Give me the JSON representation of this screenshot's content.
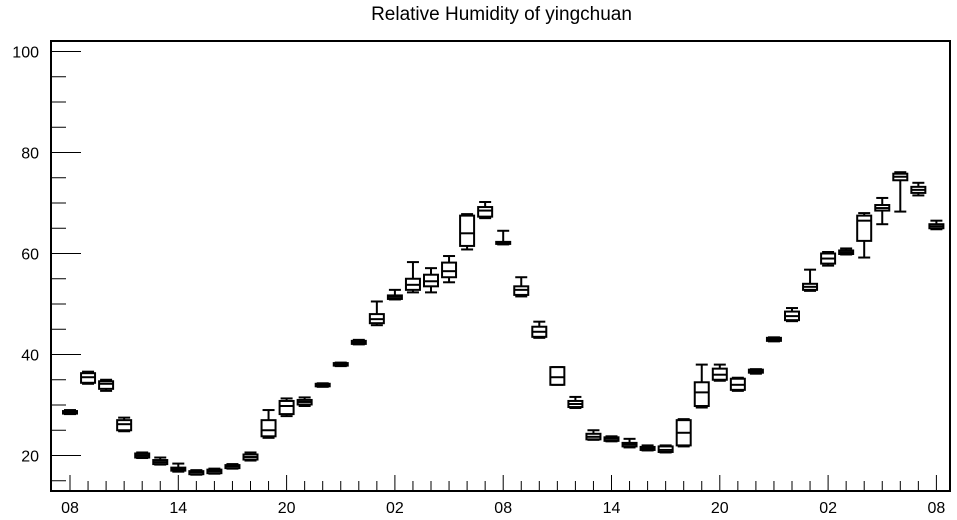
{
  "chart_data": {
    "type": "boxplot",
    "title": "Relative Humidity of yingchuan",
    "xlabel": "",
    "ylabel": "",
    "ylim": [
      13.5,
      102
    ],
    "yticks": [
      20,
      40,
      60,
      80,
      100
    ],
    "x_ticks": [
      {
        "label": "08",
        "index": 0
      },
      {
        "label": "14",
        "index": 6
      },
      {
        "label": "20",
        "index": 12
      },
      {
        "label": "02",
        "index": 18
      },
      {
        "label": "08",
        "index": 24
      },
      {
        "label": "14",
        "index": 30
      },
      {
        "label": "20",
        "index": 36
      },
      {
        "label": "02",
        "index": 42
      },
      {
        "label": "08",
        "index": 48
      }
    ],
    "boxes": [
      {
        "i": 0,
        "min": 28.2,
        "q1": 28.3,
        "median": 28.6,
        "q3": 28.8,
        "max": 29.0
      },
      {
        "i": 1,
        "min": 34.2,
        "q1": 34.4,
        "median": 35.5,
        "q3": 36.3,
        "max": 36.6
      },
      {
        "i": 2,
        "min": 32.8,
        "q1": 33.2,
        "median": 34.2,
        "q3": 34.7,
        "max": 35.0
      },
      {
        "i": 3,
        "min": 24.8,
        "q1": 25.0,
        "median": 26.2,
        "q3": 27.0,
        "max": 27.5
      },
      {
        "i": 4,
        "min": 19.5,
        "q1": 19.6,
        "median": 20.0,
        "q3": 20.4,
        "max": 20.6
      },
      {
        "i": 5,
        "min": 18.2,
        "q1": 18.3,
        "median": 18.7,
        "q3": 19.1,
        "max": 19.6
      },
      {
        "i": 6,
        "min": 16.8,
        "q1": 17.0,
        "median": 17.3,
        "q3": 17.6,
        "max": 18.4
      },
      {
        "i": 7,
        "min": 16.2,
        "q1": 16.3,
        "median": 16.7,
        "q3": 16.9,
        "max": 17.1
      },
      {
        "i": 8,
        "min": 16.4,
        "q1": 16.5,
        "median": 16.9,
        "q3": 17.2,
        "max": 17.4
      },
      {
        "i": 9,
        "min": 17.4,
        "q1": 17.5,
        "median": 17.9,
        "q3": 18.1,
        "max": 18.3
      },
      {
        "i": 10,
        "min": 19.0,
        "q1": 19.2,
        "median": 19.7,
        "q3": 20.2,
        "max": 20.6
      },
      {
        "i": 11,
        "min": 23.5,
        "q1": 23.8,
        "median": 25.0,
        "q3": 27.0,
        "max": 29.0
      },
      {
        "i": 12,
        "min": 27.8,
        "q1": 28.2,
        "median": 29.8,
        "q3": 30.8,
        "max": 31.3
      },
      {
        "i": 13,
        "min": 29.8,
        "q1": 30.1,
        "median": 30.6,
        "q3": 31.0,
        "max": 31.5
      },
      {
        "i": 14,
        "min": 33.6,
        "q1": 33.7,
        "median": 34.0,
        "q3": 34.2,
        "max": 34.3
      },
      {
        "i": 15,
        "min": 37.7,
        "q1": 37.8,
        "median": 38.0,
        "q3": 38.3,
        "max": 38.4
      },
      {
        "i": 16,
        "min": 42.0,
        "q1": 42.1,
        "median": 42.4,
        "q3": 42.7,
        "max": 42.9
      },
      {
        "i": 17,
        "min": 45.8,
        "q1": 46.2,
        "median": 47.0,
        "q3": 48.0,
        "max": 50.5
      },
      {
        "i": 18,
        "min": 50.9,
        "q1": 51.0,
        "median": 51.4,
        "q3": 51.7,
        "max": 52.8
      },
      {
        "i": 19,
        "min": 52.3,
        "q1": 52.8,
        "median": 53.8,
        "q3": 55.0,
        "max": 58.3
      },
      {
        "i": 20,
        "min": 52.3,
        "q1": 53.5,
        "median": 54.5,
        "q3": 55.8,
        "max": 57.1
      },
      {
        "i": 21,
        "min": 54.3,
        "q1": 55.3,
        "median": 56.5,
        "q3": 58.2,
        "max": 59.5
      },
      {
        "i": 22,
        "min": 60.8,
        "q1": 61.5,
        "median": 64.0,
        "q3": 67.5,
        "max": 67.8
      },
      {
        "i": 23,
        "min": 67.0,
        "q1": 67.3,
        "median": 68.5,
        "q3": 69.2,
        "max": 70.2
      },
      {
        "i": 24,
        "min": 61.8,
        "q1": 61.9,
        "median": 62.1,
        "q3": 62.3,
        "max": 64.5
      },
      {
        "i": 25,
        "min": 51.5,
        "q1": 51.8,
        "median": 52.8,
        "q3": 53.5,
        "max": 55.3
      },
      {
        "i": 26,
        "min": 43.3,
        "q1": 43.5,
        "median": 44.5,
        "q3": 45.5,
        "max": 46.5
      },
      {
        "i": 27,
        "min": 34.0,
        "q1": 34.0,
        "median": 35.5,
        "q3": 37.5,
        "max": 37.5
      },
      {
        "i": 28,
        "min": 29.4,
        "q1": 29.6,
        "median": 30.2,
        "q3": 30.8,
        "max": 31.6
      },
      {
        "i": 29,
        "min": 23.1,
        "q1": 23.2,
        "median": 23.7,
        "q3": 24.3,
        "max": 25.0
      },
      {
        "i": 30,
        "min": 22.8,
        "q1": 22.9,
        "median": 23.3,
        "q3": 23.6,
        "max": 23.8
      },
      {
        "i": 31,
        "min": 21.6,
        "q1": 21.8,
        "median": 22.2,
        "q3": 22.5,
        "max": 23.3
      },
      {
        "i": 32,
        "min": 21.0,
        "q1": 21.1,
        "median": 21.4,
        "q3": 21.7,
        "max": 22.0
      },
      {
        "i": 33,
        "min": 20.6,
        "q1": 20.7,
        "median": 21.1,
        "q3": 21.8,
        "max": 22.0
      },
      {
        "i": 34,
        "min": 21.8,
        "q1": 22.0,
        "median": 24.5,
        "q3": 27.0,
        "max": 27.2
      },
      {
        "i": 35,
        "min": 29.5,
        "q1": 29.8,
        "median": 32.5,
        "q3": 34.5,
        "max": 38.0
      },
      {
        "i": 36,
        "min": 34.8,
        "q1": 35.0,
        "median": 36.0,
        "q3": 37.2,
        "max": 38.0
      },
      {
        "i": 37,
        "min": 32.8,
        "q1": 33.0,
        "median": 34.0,
        "q3": 35.2,
        "max": 35.4
      },
      {
        "i": 38,
        "min": 36.2,
        "q1": 36.4,
        "median": 36.7,
        "q3": 37.0,
        "max": 37.1
      },
      {
        "i": 39,
        "min": 42.6,
        "q1": 42.7,
        "median": 43.0,
        "q3": 43.3,
        "max": 43.4
      },
      {
        "i": 40,
        "min": 46.6,
        "q1": 46.8,
        "median": 47.6,
        "q3": 48.5,
        "max": 49.2
      },
      {
        "i": 41,
        "min": 52.6,
        "q1": 52.8,
        "median": 53.4,
        "q3": 54.0,
        "max": 56.8
      },
      {
        "i": 42,
        "min": 57.6,
        "q1": 58.0,
        "median": 59.0,
        "q3": 60.0,
        "max": 60.3
      },
      {
        "i": 43,
        "min": 59.8,
        "q1": 59.9,
        "median": 60.2,
        "q3": 60.6,
        "max": 61.0
      },
      {
        "i": 44,
        "min": 59.2,
        "q1": 62.5,
        "median": 66.5,
        "q3": 67.5,
        "max": 68.0
      },
      {
        "i": 45,
        "min": 65.8,
        "q1": 68.5,
        "median": 69.0,
        "q3": 69.6,
        "max": 71.0
      },
      {
        "i": 46,
        "min": 68.3,
        "q1": 74.5,
        "median": 75.2,
        "q3": 75.8,
        "max": 76.1
      },
      {
        "i": 47,
        "min": 71.5,
        "q1": 72.0,
        "median": 72.6,
        "q3": 73.2,
        "max": 74.0
      },
      {
        "i": 48,
        "min": 64.8,
        "q1": 65.0,
        "median": 65.4,
        "q3": 65.8,
        "max": 66.5
      }
    ],
    "grid": false,
    "legend": "none"
  }
}
